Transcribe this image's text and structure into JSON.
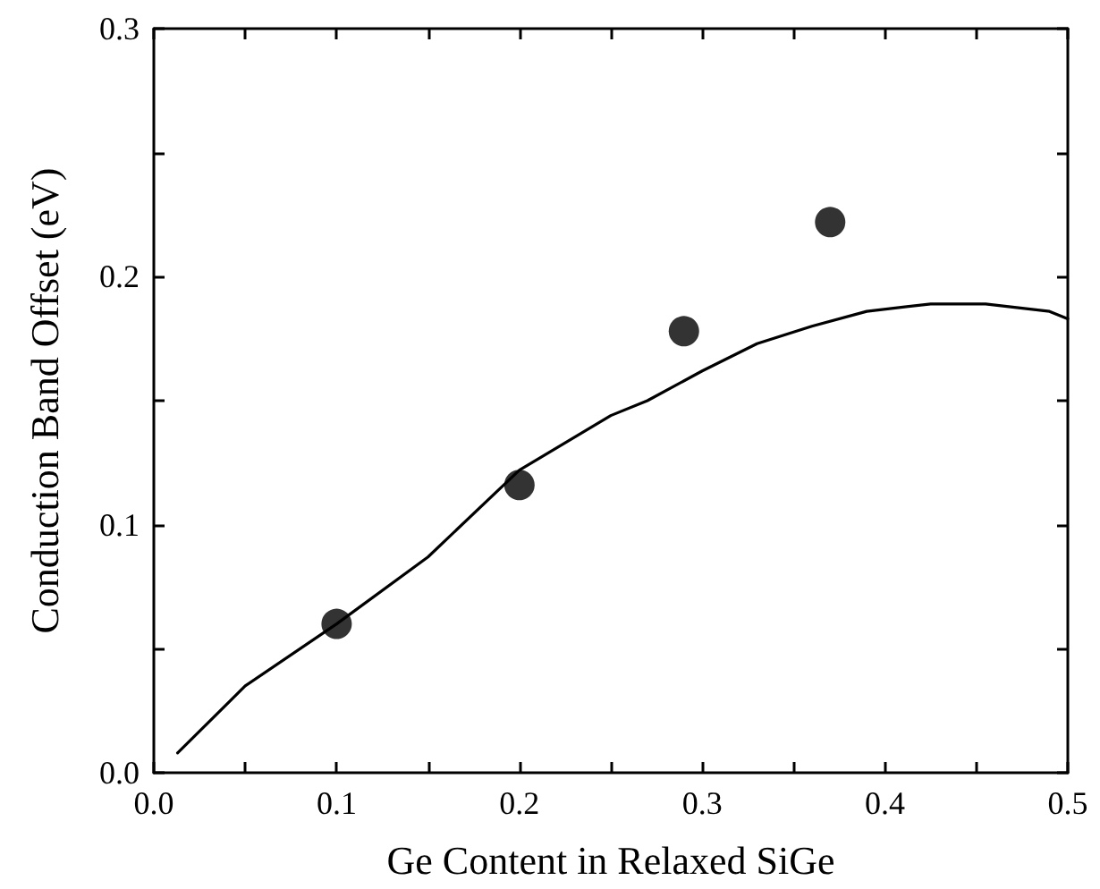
{
  "chart_data": {
    "type": "scatter",
    "xlabel": "Ge Content in Relaxed SiGe",
    "ylabel": "Conduction Band Offset (eV)",
    "xlim": [
      0,
      0.5
    ],
    "ylim": [
      0,
      0.3
    ],
    "xticks": [
      {
        "value": 0,
        "label": "0.0"
      },
      {
        "value": 0.05,
        "label": null
      },
      0.1,
      {
        "value": 0.15,
        "label": null
      },
      0.2,
      {
        "value": 0.25,
        "label": null
      },
      0.3,
      {
        "value": 0.35,
        "label": null
      },
      0.4,
      {
        "value": 0.45,
        "label": null
      },
      0.5
    ],
    "yticks": [
      {
        "value": 0,
        "label": "0.0"
      },
      {
        "value": 0.05,
        "label": null
      },
      0.1,
      {
        "value": 0.15,
        "label": null
      },
      0.2,
      {
        "value": 0.25,
        "label": null
      },
      0.3
    ],
    "grid": false,
    "series": [
      {
        "color": "#000000",
        "marker": "circle",
        "x": [
          0.1,
          0.2,
          0.29,
          0.37
        ],
        "values": [
          0.06,
          0.116,
          0.178,
          0.222
        ]
      },
      {
        "type": "line",
        "color": "#000000",
        "marker": "none",
        "line_style": "solid",
        "x": [
          0.013,
          0.05,
          0.1,
          0.15,
          0.2,
          0.25,
          0.27,
          0.3,
          0.33,
          0.36,
          0.39,
          0.425,
          0.455,
          0.49,
          0.5
        ],
        "values": [
          0.008,
          0.035,
          0.06,
          0.087,
          0.122,
          0.144,
          0.15,
          0.162,
          0.173,
          0.18,
          0.186,
          0.189,
          0.189,
          0.186,
          0.183
        ]
      }
    ]
  }
}
